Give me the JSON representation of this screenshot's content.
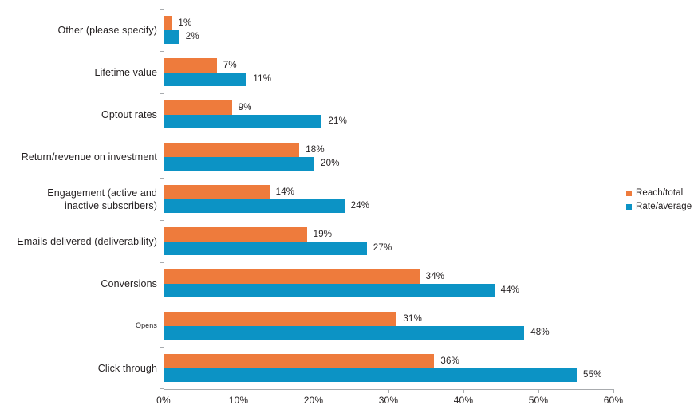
{
  "chart_data": {
    "type": "bar",
    "orientation": "horizontal",
    "title": "",
    "xlabel": "",
    "ylabel": "",
    "grid": false,
    "legend_position": "right",
    "value_suffix": "%",
    "categories": [
      {
        "label": "Other (please specify)",
        "small_font": false
      },
      {
        "label": "Lifetime value",
        "small_font": false
      },
      {
        "label": "Optout rates",
        "small_font": false
      },
      {
        "label": "Return/revenue on investment",
        "small_font": false
      },
      {
        "label": "Engagement (active and\ninactive subscribers)",
        "small_font": false
      },
      {
        "label": "Emails delivered (deliverability)",
        "small_font": false
      },
      {
        "label": "Conversions",
        "small_font": false
      },
      {
        "label": "Opens",
        "small_font": true
      },
      {
        "label": "Click through",
        "small_font": false
      }
    ],
    "series": [
      {
        "name": "Reach/total",
        "color": "#ee7b3c",
        "values": [
          1,
          7,
          9,
          18,
          14,
          19,
          34,
          31,
          36
        ]
      },
      {
        "name": "Rate/average",
        "color": "#0c93c5",
        "values": [
          2,
          11,
          21,
          20,
          24,
          27,
          44,
          48,
          55
        ]
      }
    ],
    "x_axis": {
      "min": 0,
      "max": 60,
      "ticks": [
        "0%",
        "10%",
        "20%",
        "30%",
        "40%",
        "50%",
        "60%"
      ]
    }
  },
  "colors": {
    "axis": "#a8abae",
    "text": "#231f20",
    "background": "#ffffff"
  }
}
